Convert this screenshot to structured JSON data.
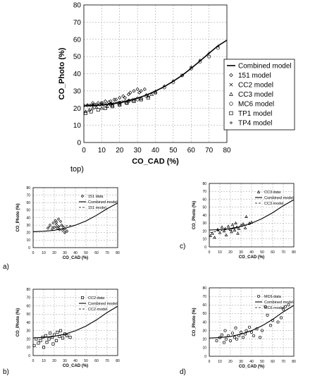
{
  "chart_data": [
    {
      "type": "scatter",
      "panel_label": "top)",
      "xlabel": "CO_CAD (%)",
      "ylabel": "CO_Photo (%)",
      "xlim": [
        0,
        80
      ],
      "ylim": [
        0,
        80
      ],
      "xticks": [
        0,
        10,
        20,
        30,
        40,
        50,
        60,
        70,
        80
      ],
      "yticks": [
        0,
        10,
        20,
        30,
        40,
        50,
        60,
        70,
        80
      ],
      "grid": true,
      "legend_position": "right",
      "combined_model": {
        "name": "Combined model",
        "x": [
          0,
          5,
          10,
          15,
          20,
          25,
          30,
          35,
          40,
          45,
          50,
          55,
          60,
          65,
          70,
          75,
          80
        ],
        "y": [
          21.3,
          21.5,
          21.8,
          22.4,
          23.2,
          24.3,
          25.8,
          27.6,
          29.9,
          32.5,
          35.6,
          39.1,
          43.1,
          47.4,
          51.9,
          56.2,
          59.5
        ]
      },
      "series": [
        {
          "name": "151 model",
          "marker": "diamond",
          "x": [
            5,
            8,
            10,
            12,
            14,
            15,
            17,
            18,
            20,
            22,
            23,
            25,
            26,
            28,
            30,
            31,
            32,
            34
          ],
          "y": [
            23,
            23,
            22.5,
            24,
            23.5,
            24,
            25,
            25,
            26,
            27,
            26,
            28,
            29,
            30,
            31,
            29,
            30,
            31
          ]
        },
        {
          "name": "CC2 model",
          "marker": "x",
          "x": [
            1,
            3,
            4,
            6,
            8,
            10,
            12,
            14,
            16,
            18,
            20,
            22,
            24,
            26,
            28
          ],
          "y": [
            21.5,
            21.6,
            21.7,
            21.8,
            21.9,
            22,
            22.2,
            22.4,
            22.7,
            23,
            23.3,
            23.7,
            24.1,
            24.6,
            25.1
          ]
        },
        {
          "name": "CC3 model",
          "marker": "triangle",
          "x": [
            1,
            3,
            5,
            7,
            10,
            13,
            16,
            20,
            24,
            28,
            32,
            36,
            38,
            40
          ],
          "y": [
            18,
            19,
            20,
            20.5,
            20,
            21,
            21.5,
            22,
            23,
            24.5,
            25.5,
            27,
            28,
            29
          ]
        },
        {
          "name": "MC6 model",
          "marker": "circle",
          "x": [
            6,
            10,
            15,
            20,
            25,
            30,
            35,
            40,
            45,
            50,
            55,
            60,
            65,
            70,
            75
          ],
          "y": [
            22,
            23,
            22,
            23,
            24,
            25,
            27,
            29,
            32,
            35,
            39,
            43,
            47,
            50,
            55
          ]
        },
        {
          "name": "TP1 model",
          "marker": "square",
          "x": [
            1,
            4,
            8,
            12,
            16,
            20,
            24,
            28,
            32,
            36
          ],
          "y": [
            17,
            18,
            19,
            20,
            21,
            22,
            23,
            24,
            25,
            26
          ]
        },
        {
          "name": "TP4 model",
          "marker": "plus",
          "x": [
            2,
            5,
            10,
            15,
            20,
            25,
            30,
            35,
            40,
            45,
            50,
            55,
            60,
            65,
            70,
            75
          ],
          "y": [
            22,
            22,
            22.5,
            22.8,
            23.5,
            24.5,
            26,
            28,
            30,
            33,
            36,
            39,
            44,
            48,
            52,
            56
          ]
        }
      ]
    },
    {
      "type": "scatter",
      "panel_label": "a)",
      "xlabel": "CO_CAD (%)",
      "ylabel": "CO_Photo (%)",
      "xlim": [
        0,
        80
      ],
      "ylim": [
        0,
        80
      ],
      "xticks": [
        0,
        10,
        20,
        30,
        40,
        50,
        60,
        70,
        80
      ],
      "yticks": [
        0,
        10,
        20,
        30,
        40,
        50,
        60,
        70,
        80
      ],
      "grid": true,
      "legend_position": "top-right",
      "legend": [
        "151 data",
        "Combined model",
        "151 model"
      ],
      "combined_model": {
        "x": [
          0,
          10,
          20,
          30,
          40,
          50,
          60,
          70,
          80
        ],
        "y": [
          21.3,
          21.8,
          23.2,
          25.8,
          29.9,
          35.6,
          43.1,
          51.9,
          59.5
        ]
      },
      "data": {
        "marker": "diamond",
        "x": [
          14,
          16,
          18,
          19,
          20,
          21,
          22,
          23,
          24,
          25,
          26,
          27,
          28,
          29,
          30,
          32,
          24,
          22,
          30
        ],
        "y": [
          26,
          30,
          25,
          33,
          27,
          36,
          31,
          26,
          28,
          24,
          35,
          30,
          23,
          27,
          25,
          22,
          38,
          34,
          20
        ]
      },
      "model": {
        "x": [
          14,
          22,
          30,
          36
        ],
        "y": [
          27.5,
          28,
          28.8,
          29.6
        ]
      }
    },
    {
      "type": "scatter",
      "panel_label": "b)",
      "xlabel": "CO_CAD (%)",
      "ylabel": "CO_Photo (%)",
      "xlim": [
        0,
        80
      ],
      "ylim": [
        0,
        80
      ],
      "xticks": [
        0,
        10,
        20,
        30,
        40,
        50,
        60,
        70,
        80
      ],
      "yticks": [
        0,
        10,
        20,
        30,
        40,
        50,
        60,
        70,
        80
      ],
      "grid": true,
      "legend_position": "top-right",
      "legend": [
        "CC2 data",
        "Combined model",
        "CC2 model"
      ],
      "combined_model": {
        "x": [
          0,
          10,
          20,
          30,
          40,
          50,
          60,
          70,
          80
        ],
        "y": [
          21.3,
          21.8,
          23.2,
          25.8,
          29.9,
          35.6,
          43.1,
          51.9,
          59.5
        ]
      },
      "data": {
        "marker": "square",
        "x": [
          1,
          3,
          5,
          7,
          9,
          10,
          12,
          13,
          15,
          16,
          18,
          19,
          20,
          22,
          23,
          25,
          26,
          28,
          30,
          32,
          35
        ],
        "y": [
          12,
          20,
          15,
          18,
          22,
          10,
          24,
          16,
          20,
          27,
          22,
          14,
          25,
          18,
          28,
          23,
          30,
          21,
          26,
          24,
          22
        ]
      },
      "model": {
        "x": [
          1,
          10,
          20,
          30,
          35
        ],
        "y": [
          21.5,
          22,
          23.3,
          25,
          25.8
        ]
      }
    },
    {
      "type": "scatter",
      "panel_label": "c)",
      "xlabel": "CO_CAD (%)",
      "ylabel": "CO_Photo (%)",
      "xlim": [
        0,
        80
      ],
      "ylim": [
        0,
        80
      ],
      "xticks": [
        0,
        10,
        20,
        30,
        40,
        50,
        60,
        70,
        80
      ],
      "yticks": [
        0,
        10,
        20,
        30,
        40,
        50,
        60,
        70,
        80
      ],
      "grid": true,
      "legend_position": "top-right",
      "legend": [
        "CC3 data",
        "Combined model",
        "CC3 model"
      ],
      "combined_model": {
        "x": [
          0,
          10,
          20,
          30,
          40,
          50,
          60,
          70,
          80
        ],
        "y": [
          21.3,
          21.8,
          23.2,
          25.8,
          29.9,
          35.6,
          43.1,
          51.9,
          59.5
        ]
      },
      "data": {
        "marker": "triangle",
        "x": [
          1,
          3,
          5,
          8,
          10,
          12,
          14,
          15,
          16,
          18,
          20,
          21,
          22,
          23,
          24,
          25,
          26,
          27,
          28,
          30,
          32,
          34,
          35,
          38,
          40
        ],
        "y": [
          14,
          17,
          12,
          22,
          18,
          25,
          20,
          23,
          15,
          26,
          22,
          19,
          28,
          24,
          21,
          30,
          25,
          17,
          23,
          27,
          29,
          24,
          38,
          30,
          31
        ]
      },
      "model": {
        "x": [
          1,
          10,
          20,
          30,
          40
        ],
        "y": [
          18,
          20.5,
          22.5,
          25.5,
          29
        ]
      }
    },
    {
      "type": "scatter",
      "panel_label": "d)",
      "xlabel": "CO_CAD (%)",
      "ylabel": "CO_Photo (%)",
      "xlim": [
        0,
        80
      ],
      "ylim": [
        0,
        80
      ],
      "xticks": [
        0,
        10,
        20,
        30,
        40,
        50,
        60,
        70,
        80
      ],
      "yticks": [
        0,
        10,
        20,
        30,
        40,
        50,
        60,
        70,
        80
      ],
      "grid": true,
      "legend_position": "top-right",
      "legend": [
        "MC6 data",
        "Combined model",
        "MC6 model"
      ],
      "combined_model": {
        "x": [
          0,
          10,
          20,
          30,
          40,
          50,
          60,
          70,
          80
        ],
        "y": [
          21.3,
          21.8,
          23.2,
          25.8,
          29.9,
          35.6,
          43.1,
          51.9,
          59.5
        ]
      },
      "data": {
        "marker": "circle",
        "x": [
          7,
          10,
          12,
          14,
          15,
          16,
          18,
          20,
          22,
          24,
          25,
          26,
          28,
          30,
          32,
          34,
          35,
          38,
          40,
          42,
          45,
          48,
          50,
          53,
          55,
          58,
          60,
          65,
          68,
          70,
          72,
          75
        ],
        "y": [
          18,
          22,
          25,
          16,
          30,
          20,
          24,
          18,
          27,
          22,
          33,
          20,
          24,
          28,
          22,
          26,
          30,
          34,
          28,
          24,
          32,
          22,
          30,
          58,
          48,
          36,
          42,
          40,
          45,
          55,
          58,
          60
        ]
      },
      "model": {
        "x": [
          7,
          20,
          30,
          40,
          50,
          60,
          70,
          75
        ],
        "y": [
          21.5,
          23.2,
          25.8,
          29.9,
          35.6,
          43.1,
          51.9,
          56
        ]
      }
    }
  ]
}
